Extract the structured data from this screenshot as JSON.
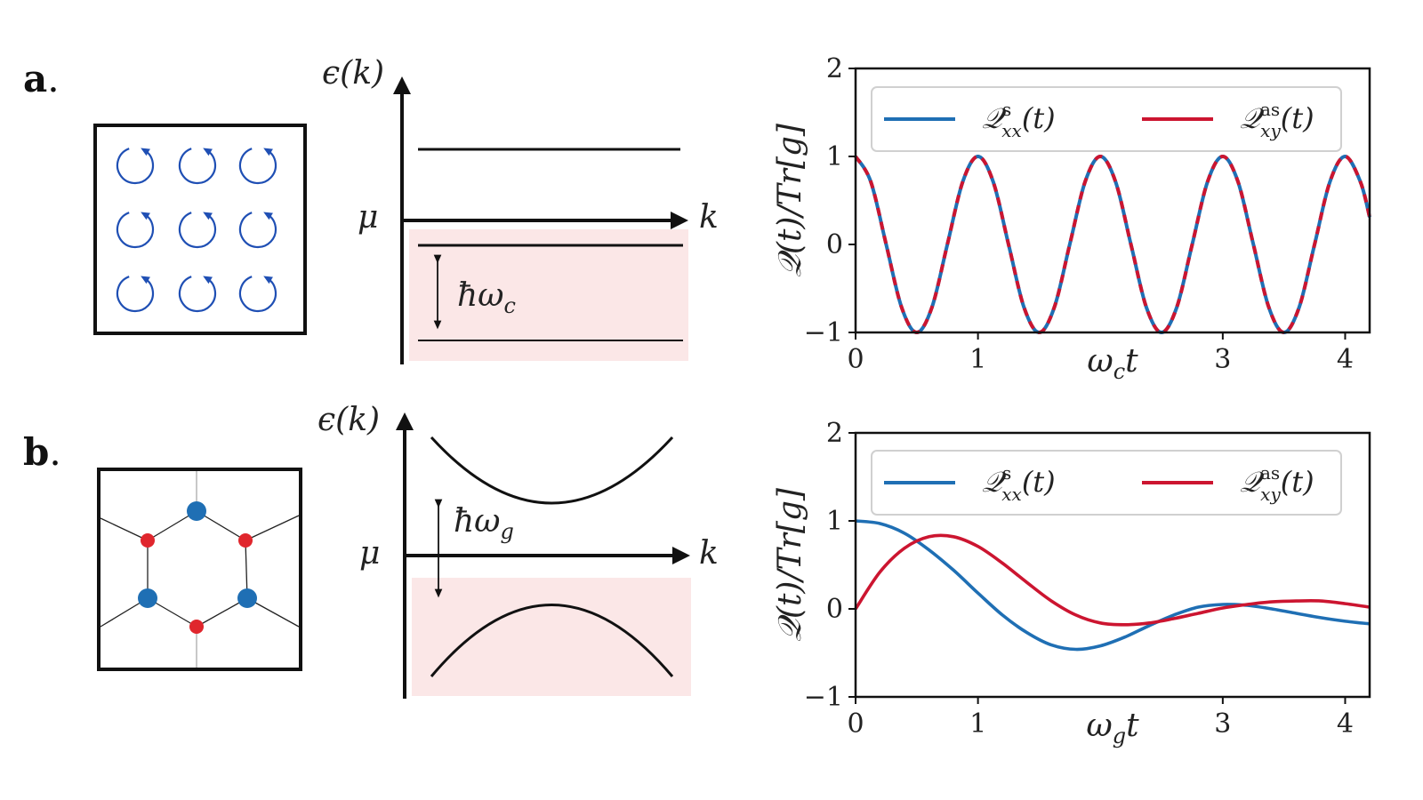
{
  "panels": {
    "a": {
      "label": "a",
      "dot": "."
    },
    "b": {
      "label": "b",
      "dot": "."
    }
  },
  "schematics": {
    "a": {
      "y_axis_label": "ϵ(k)",
      "x_axis_label": "k",
      "mu_label": "μ",
      "gap_label": "ħω",
      "gap_sub": "c"
    },
    "b": {
      "y_axis_label": "ϵ(k)",
      "x_axis_label": "k",
      "mu_label": "μ",
      "gap_label": "ħω",
      "gap_sub": "g"
    }
  },
  "colors": {
    "blue": "#1f6fb4",
    "red": "#cc1530",
    "shade": "#fbe7e7",
    "lattice_blue": "#1f6fb4",
    "lattice_red": "#e0262d"
  },
  "chart_data": [
    {
      "type": "line",
      "ylabel": "𝒬(t)/Tr[g]",
      "xlabel_main": "ω",
      "xlabel_sub": "c",
      "xlabel_tail": "t",
      "xlim": [
        0,
        4.2
      ],
      "ylim": [
        -1,
        2
      ],
      "xticks": [
        0,
        1,
        3,
        4
      ],
      "xtick_labels": [
        "0",
        "1",
        "3",
        "4"
      ],
      "yticks": [
        -1,
        0,
        1,
        2
      ],
      "ytick_labels": [
        "−1",
        "0",
        "1",
        "2"
      ],
      "legend_position": "top",
      "series": [
        {
          "name": "𝒬ˢₓₓ(t)",
          "name_main": "𝒬",
          "name_sup": "s",
          "name_sub": "xx",
          "name_tail": "(t)",
          "color": "#1f6fb4",
          "style": "solid",
          "x": [
            0,
            0.125,
            0.25,
            0.375,
            0.5,
            0.625,
            0.75,
            0.875,
            1,
            1.125,
            1.25,
            1.375,
            1.5,
            1.625,
            1.75,
            1.875,
            2,
            2.125,
            2.25,
            2.375,
            2.5,
            2.625,
            2.75,
            2.875,
            3,
            3.125,
            3.25,
            3.375,
            3.5,
            3.625,
            3.75,
            3.875,
            4,
            4.125,
            4.2
          ],
          "y": [
            1,
            0.71,
            0,
            -0.71,
            -1,
            -0.71,
            0,
            0.71,
            1,
            0.71,
            0,
            -0.71,
            -1,
            -0.71,
            0,
            0.71,
            1,
            0.71,
            0,
            -0.71,
            -1,
            -0.71,
            0,
            0.71,
            1,
            0.71,
            0,
            -0.71,
            -1,
            -0.71,
            0,
            0.71,
            1,
            0.71,
            0.31
          ]
        },
        {
          "name": "𝒬ᵃˢₓᵧ(t)",
          "name_main": "𝒬",
          "name_sup": "as",
          "name_sub": "xy",
          "name_tail": "(t)",
          "color": "#cc1530",
          "style": "dashed",
          "x": [
            0,
            0.125,
            0.25,
            0.375,
            0.5,
            0.625,
            0.75,
            0.875,
            1,
            1.125,
            1.25,
            1.375,
            1.5,
            1.625,
            1.75,
            1.875,
            2,
            2.125,
            2.25,
            2.375,
            2.5,
            2.625,
            2.75,
            2.875,
            3,
            3.125,
            3.25,
            3.375,
            3.5,
            3.625,
            3.75,
            3.875,
            4,
            4.125,
            4.2
          ],
          "y": [
            1,
            0.71,
            0,
            -0.71,
            -1,
            -0.71,
            0,
            0.71,
            1,
            0.71,
            0,
            -0.71,
            -1,
            -0.71,
            0,
            0.71,
            1,
            0.71,
            0,
            -0.71,
            -1,
            -0.71,
            0,
            0.71,
            1,
            0.71,
            0,
            -0.71,
            -1,
            -0.71,
            0,
            0.71,
            1,
            0.71,
            0.31
          ]
        }
      ]
    },
    {
      "type": "line",
      "ylabel": "𝒬(t)/Tr[g]",
      "xlabel_main": "ω",
      "xlabel_sub": "g",
      "xlabel_tail": "t",
      "xlim": [
        0,
        4.2
      ],
      "ylim": [
        -1,
        2
      ],
      "xticks": [
        0,
        1,
        3,
        4
      ],
      "xtick_labels": [
        "0",
        "1",
        "3",
        "4"
      ],
      "yticks": [
        -1,
        0,
        1,
        2
      ],
      "ytick_labels": [
        "−1",
        "0",
        "1",
        "2"
      ],
      "legend_position": "top",
      "series": [
        {
          "name": "𝒬ˢₓₓ(t)",
          "name_main": "𝒬",
          "name_sup": "s",
          "name_sub": "xx",
          "name_tail": "(t)",
          "color": "#1f6fb4",
          "style": "solid",
          "x": [
            0,
            0.2,
            0.4,
            0.6,
            0.8,
            1.0,
            1.2,
            1.4,
            1.6,
            1.8,
            2.0,
            2.2,
            2.4,
            2.6,
            2.8,
            3.0,
            3.2,
            3.4,
            3.6,
            3.8,
            4.0,
            4.2
          ],
          "y": [
            1.0,
            0.97,
            0.86,
            0.67,
            0.44,
            0.18,
            -0.07,
            -0.27,
            -0.41,
            -0.46,
            -0.42,
            -0.32,
            -0.19,
            -0.07,
            0.02,
            0.05,
            0.04,
            0.0,
            -0.05,
            -0.1,
            -0.14,
            -0.17
          ]
        },
        {
          "name": "𝒬ᵃˢₓᵧ(t)",
          "name_main": "𝒬",
          "name_sup": "as",
          "name_sub": "xy",
          "name_tail": "(t)",
          "color": "#cc1530",
          "style": "solid",
          "x": [
            0,
            0.2,
            0.4,
            0.6,
            0.8,
            1.0,
            1.2,
            1.4,
            1.6,
            1.8,
            2.0,
            2.2,
            2.4,
            2.6,
            2.8,
            3.0,
            3.2,
            3.4,
            3.6,
            3.8,
            4.0,
            4.2
          ],
          "y": [
            0.0,
            0.42,
            0.69,
            0.82,
            0.82,
            0.71,
            0.52,
            0.3,
            0.09,
            -0.07,
            -0.16,
            -0.18,
            -0.16,
            -0.11,
            -0.05,
            0.01,
            0.05,
            0.08,
            0.09,
            0.09,
            0.06,
            0.02
          ]
        }
      ]
    }
  ]
}
